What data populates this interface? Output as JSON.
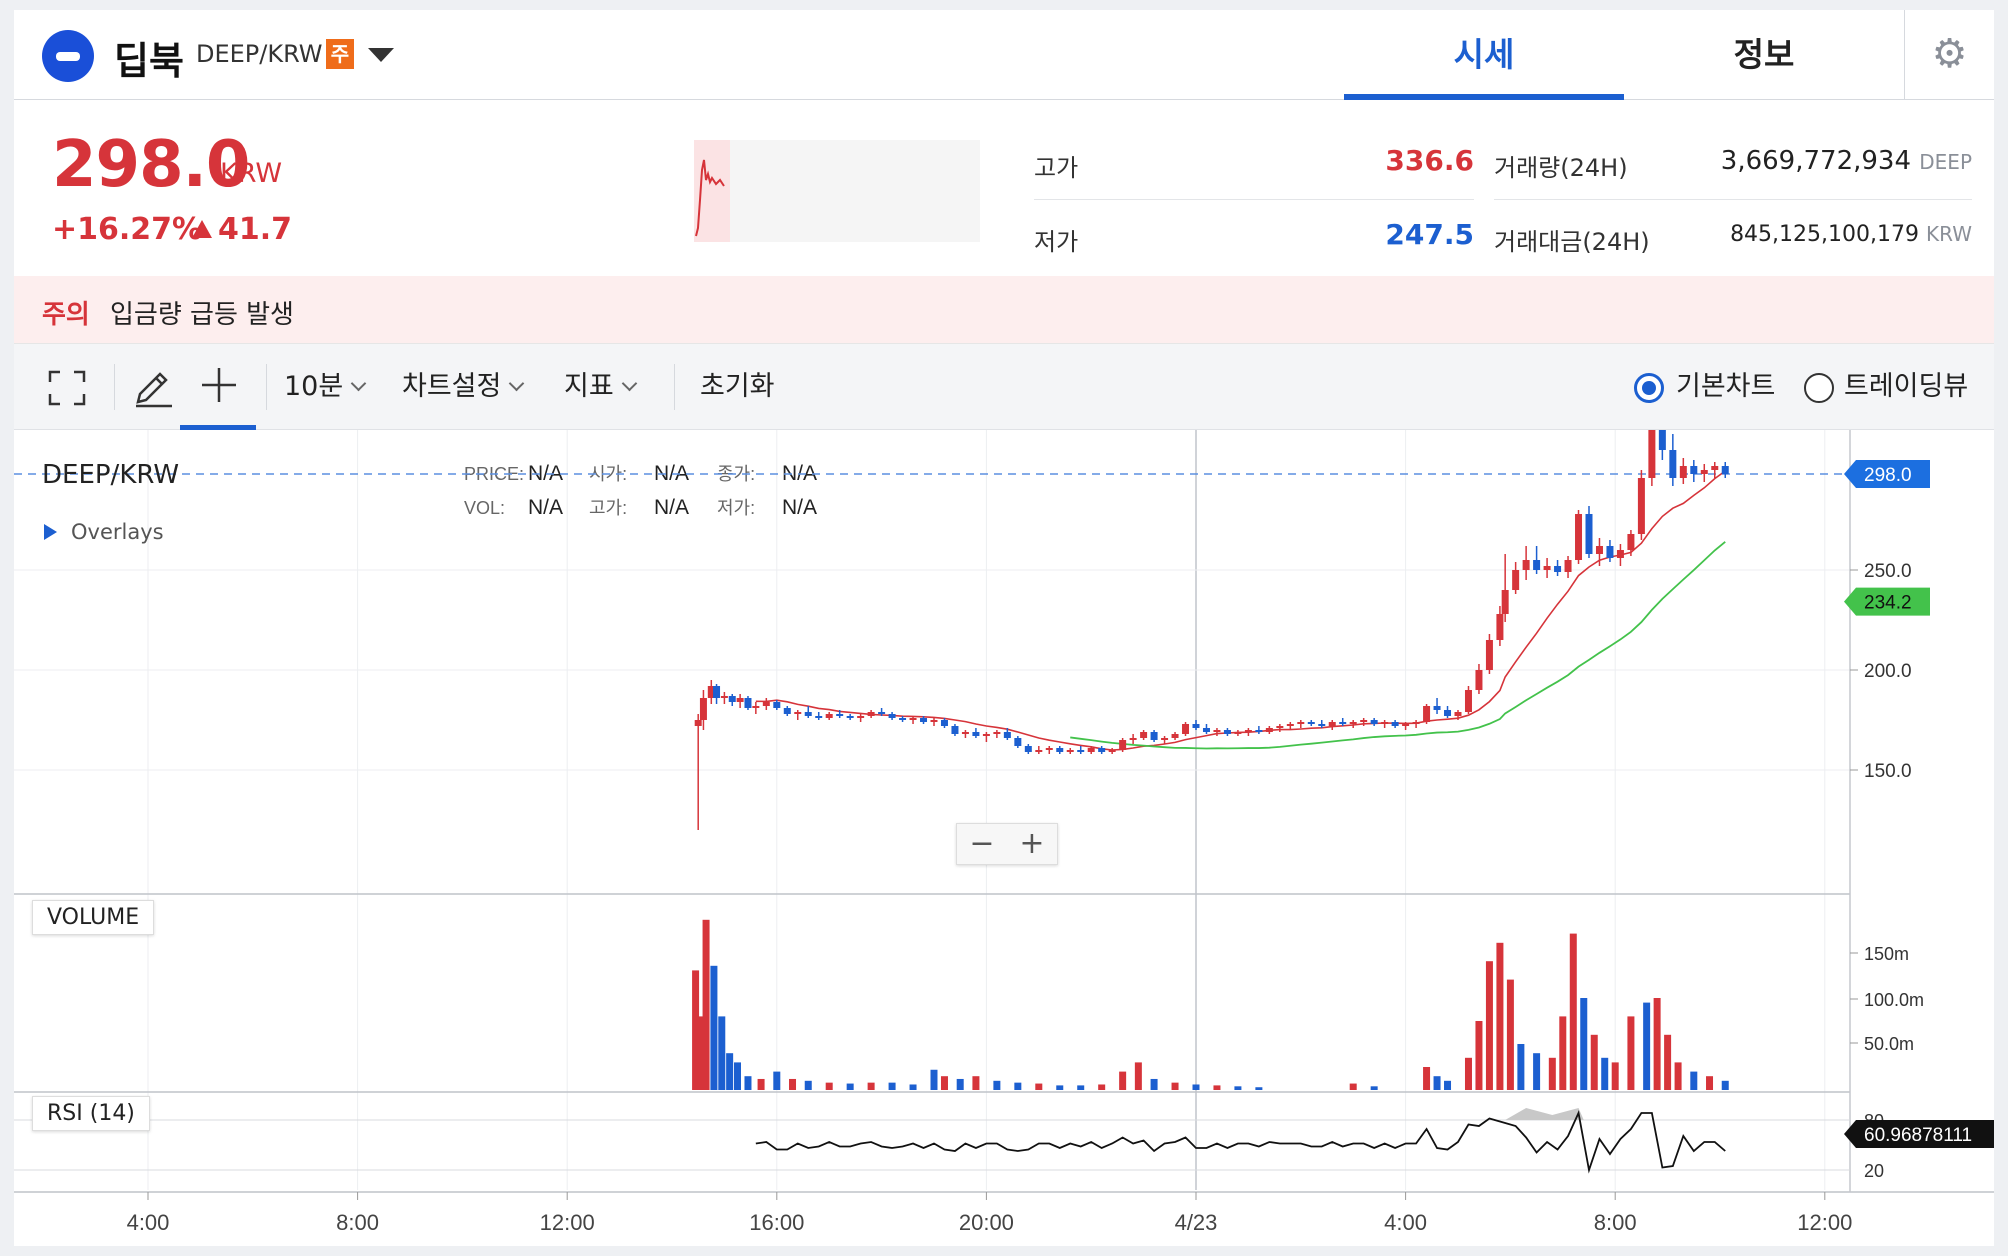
{
  "header": {
    "coin_name": "딥북",
    "pair": "DEEP/KRW",
    "caution_badge": "주",
    "tabs": [
      {
        "label": "시세",
        "active": true
      },
      {
        "label": "정보",
        "active": false
      }
    ]
  },
  "ticker": {
    "price": "298.0",
    "price_unit": "KRW",
    "change_rate": "+16.27%",
    "change_amount": "41.7",
    "stats": {
      "high_label": "고가",
      "high": "336.6",
      "low_label": "저가",
      "low": "247.5",
      "volume_label": "거래량(24H)",
      "volume": "3,669,772,934",
      "volume_unit": "DEEP",
      "value_label": "거래대금(24H)",
      "value": "845,125,100,179",
      "value_unit": "KRW"
    }
  },
  "notice": {
    "tag": "주의",
    "text": "입금량 급등 발생"
  },
  "toolbar": {
    "interval": "10분",
    "chart_settings": "차트설정",
    "indicators": "지표",
    "reset": "초기화",
    "view_basic": "기본차트",
    "view_tradingview": "트레이딩뷰"
  },
  "chart": {
    "symbol": "DEEP/KRW",
    "overlays_label": "Overlays",
    "ohlc_info": {
      "price_label": "PRICE:",
      "price": "N/A",
      "open_label": "시가:",
      "open": "N/A",
      "close_label": "종가:",
      "close": "N/A",
      "vol_label": "VOL:",
      "vol": "N/A",
      "high_label": "고가:",
      "high": "N/A",
      "low_label": "저가:",
      "low": "N/A"
    },
    "volume_label": "VOLUME",
    "rsi_label": "RSI (14)",
    "colors": {
      "up": "#d6343a",
      "down": "#1c5fd0",
      "ma_short": "#d6343a",
      "ma_long": "#43c24b"
    }
  },
  "chart_data": {
    "type": "candlestick",
    "x_ticks": [
      "4:00",
      "8:00",
      "12:00",
      "16:00",
      "20:00",
      "4/23",
      "4:00",
      "8:00",
      "12:00"
    ],
    "price_axis": {
      "ticks": [
        "150.0",
        "200.0",
        "250.0"
      ],
      "range": [
        120,
        345
      ]
    },
    "current_price_label": "298.0",
    "ma_label": "234.2",
    "volume_axis": {
      "ticks": [
        "50.0m",
        "100.0m",
        "150m"
      ],
      "range": [
        0,
        195
      ]
    },
    "rsi_axis": {
      "ticks": [
        "20",
        "80"
      ],
      "current": "60.96878111"
    },
    "candles": [
      [
        14.5,
        172,
        178,
        120,
        175
      ],
      [
        14.6,
        175,
        190,
        170,
        186
      ],
      [
        14.75,
        186,
        195,
        183,
        192
      ],
      [
        14.85,
        192,
        193,
        183,
        186
      ],
      [
        15.0,
        186,
        189,
        183,
        187
      ],
      [
        15.15,
        187,
        188,
        182,
        184
      ],
      [
        15.3,
        184,
        188,
        181,
        186
      ],
      [
        15.45,
        186,
        187,
        180,
        181
      ],
      [
        15.6,
        181,
        184,
        178,
        182
      ],
      [
        15.8,
        182,
        186,
        180,
        184
      ],
      [
        16.0,
        184,
        185,
        180,
        181
      ],
      [
        16.2,
        181,
        182,
        177,
        178
      ],
      [
        16.4,
        178,
        180,
        175,
        179
      ],
      [
        16.6,
        179,
        182,
        176,
        177
      ],
      [
        16.8,
        177,
        179,
        175,
        176
      ],
      [
        17.0,
        176,
        179,
        175,
        178
      ],
      [
        17.2,
        178,
        180,
        176,
        177
      ],
      [
        17.4,
        177,
        178,
        175,
        176
      ],
      [
        17.6,
        176,
        178,
        174,
        177
      ],
      [
        17.8,
        177,
        180,
        176,
        179
      ],
      [
        18.0,
        179,
        181,
        177,
        178
      ],
      [
        18.2,
        178,
        179,
        175,
        176
      ],
      [
        18.4,
        176,
        177,
        174,
        175
      ],
      [
        18.6,
        175,
        177,
        173,
        176
      ],
      [
        18.8,
        176,
        177,
        173,
        174
      ],
      [
        19.0,
        174,
        176,
        172,
        175
      ],
      [
        19.2,
        175,
        176,
        171,
        172
      ],
      [
        19.4,
        172,
        173,
        167,
        168
      ],
      [
        19.6,
        168,
        170,
        166,
        169
      ],
      [
        19.8,
        169,
        171,
        166,
        167
      ],
      [
        20.0,
        167,
        169,
        164,
        168
      ],
      [
        20.2,
        168,
        170,
        166,
        169
      ],
      [
        20.4,
        169,
        171,
        165,
        166
      ],
      [
        20.6,
        166,
        167,
        161,
        162
      ],
      [
        20.8,
        162,
        163,
        158,
        159
      ],
      [
        21.0,
        159,
        162,
        158,
        160
      ],
      [
        21.2,
        160,
        162,
        158,
        161
      ],
      [
        21.4,
        161,
        162,
        158,
        159
      ],
      [
        21.6,
        159,
        161,
        158,
        160
      ],
      [
        21.8,
        160,
        162,
        158,
        159
      ],
      [
        22.0,
        159,
        162,
        158,
        161
      ],
      [
        22.2,
        161,
        162,
        158,
        159
      ],
      [
        22.4,
        159,
        161,
        158,
        160
      ],
      [
        22.6,
        160,
        166,
        159,
        165
      ],
      [
        22.8,
        165,
        168,
        163,
        166
      ],
      [
        23.0,
        166,
        170,
        165,
        169
      ],
      [
        23.2,
        169,
        170,
        164,
        165
      ],
      [
        23.4,
        165,
        167,
        163,
        166
      ],
      [
        23.6,
        166,
        169,
        165,
        168
      ],
      [
        23.8,
        168,
        174,
        167,
        173
      ],
      [
        24.0,
        173,
        175,
        170,
        171
      ],
      [
        24.2,
        171,
        173,
        168,
        169
      ],
      [
        24.4,
        169,
        171,
        167,
        170
      ],
      [
        24.6,
        170,
        171,
        167,
        168
      ],
      [
        24.8,
        168,
        170,
        167,
        169
      ],
      [
        25.0,
        169,
        171,
        167,
        170
      ],
      [
        25.2,
        170,
        172,
        168,
        169
      ],
      [
        25.4,
        169,
        172,
        168,
        171
      ],
      [
        25.6,
        171,
        173,
        169,
        172
      ],
      [
        25.8,
        172,
        174,
        170,
        173
      ],
      [
        26.0,
        173,
        175,
        171,
        174
      ],
      [
        26.2,
        174,
        175,
        172,
        173
      ],
      [
        26.4,
        173,
        175,
        171,
        172
      ],
      [
        26.6,
        172,
        175,
        170,
        174
      ],
      [
        26.8,
        174,
        176,
        172,
        173
      ],
      [
        27.0,
        173,
        175,
        171,
        174
      ],
      [
        27.2,
        174,
        176,
        172,
        175
      ],
      [
        27.4,
        175,
        176,
        172,
        173
      ],
      [
        27.6,
        173,
        175,
        171,
        174
      ],
      [
        27.8,
        174,
        175,
        171,
        172
      ],
      [
        28.0,
        172,
        174,
        170,
        173
      ],
      [
        28.2,
        173,
        175,
        171,
        174
      ],
      [
        28.4,
        174,
        183,
        173,
        182
      ],
      [
        28.6,
        182,
        186,
        178,
        180
      ],
      [
        28.8,
        180,
        182,
        176,
        177
      ],
      [
        29.0,
        177,
        180,
        175,
        179
      ],
      [
        29.2,
        179,
        192,
        178,
        190
      ],
      [
        29.4,
        190,
        203,
        188,
        200
      ],
      [
        29.6,
        200,
        218,
        198,
        215
      ],
      [
        29.8,
        215,
        232,
        212,
        228
      ],
      [
        29.9,
        228,
        258,
        224,
        240
      ],
      [
        30.1,
        240,
        254,
        238,
        250
      ],
      [
        30.3,
        250,
        262,
        245,
        255
      ],
      [
        30.5,
        255,
        262,
        248,
        250
      ],
      [
        30.7,
        250,
        256,
        246,
        252
      ],
      [
        30.9,
        252,
        255,
        247,
        249
      ],
      [
        31.1,
        249,
        257,
        246,
        255
      ],
      [
        31.3,
        255,
        280,
        253,
        278
      ],
      [
        31.5,
        278,
        282,
        256,
        258
      ],
      [
        31.7,
        258,
        266,
        252,
        262
      ],
      [
        31.9,
        262,
        265,
        254,
        256
      ],
      [
        32.1,
        256,
        263,
        252,
        260
      ],
      [
        32.3,
        260,
        270,
        257,
        268
      ],
      [
        32.5,
        268,
        300,
        265,
        296
      ],
      [
        32.7,
        296,
        330,
        292,
        325
      ],
      [
        32.9,
        325,
        337,
        305,
        310
      ],
      [
        33.1,
        310,
        318,
        292,
        296
      ],
      [
        33.3,
        296,
        306,
        293,
        302
      ],
      [
        33.5,
        302,
        305,
        294,
        298
      ],
      [
        33.7,
        298,
        303,
        294,
        300
      ],
      [
        33.9,
        300,
        304,
        296,
        302
      ],
      [
        34.1,
        302,
        304,
        296,
        298
      ]
    ],
    "volume": [
      [
        14.45,
        130,
        1
      ],
      [
        14.55,
        80,
        1
      ],
      [
        14.65,
        185,
        1
      ],
      [
        14.8,
        135,
        0
      ],
      [
        14.95,
        80,
        0
      ],
      [
        15.1,
        40,
        0
      ],
      [
        15.25,
        30,
        0
      ],
      [
        15.45,
        15,
        0
      ],
      [
        15.7,
        12,
        1
      ],
      [
        16.0,
        20,
        0
      ],
      [
        16.3,
        12,
        1
      ],
      [
        16.6,
        10,
        0
      ],
      [
        17.0,
        8,
        1
      ],
      [
        17.4,
        7,
        0
      ],
      [
        17.8,
        8,
        1
      ],
      [
        18.2,
        8,
        0
      ],
      [
        18.6,
        6,
        0
      ],
      [
        19.0,
        22,
        0
      ],
      [
        19.2,
        15,
        1
      ],
      [
        19.5,
        12,
        0
      ],
      [
        19.8,
        15,
        1
      ],
      [
        20.2,
        10,
        0
      ],
      [
        20.6,
        8,
        0
      ],
      [
        21.0,
        7,
        1
      ],
      [
        21.4,
        5,
        0
      ],
      [
        21.8,
        5,
        0
      ],
      [
        22.2,
        6,
        1
      ],
      [
        22.6,
        20,
        1
      ],
      [
        22.9,
        30,
        1
      ],
      [
        23.2,
        12,
        0
      ],
      [
        23.6,
        8,
        1
      ],
      [
        24.0,
        6,
        0
      ],
      [
        24.4,
        5,
        1
      ],
      [
        24.8,
        4,
        0
      ],
      [
        25.2,
        3,
        0
      ],
      [
        27.0,
        7,
        1
      ],
      [
        27.4,
        4,
        0
      ],
      [
        28.4,
        25,
        1
      ],
      [
        28.6,
        15,
        0
      ],
      [
        28.8,
        10,
        0
      ],
      [
        29.2,
        35,
        1
      ],
      [
        29.4,
        75,
        1
      ],
      [
        29.6,
        140,
        1
      ],
      [
        29.8,
        160,
        1
      ],
      [
        30.0,
        120,
        1
      ],
      [
        30.2,
        50,
        0
      ],
      [
        30.5,
        40,
        0
      ],
      [
        30.8,
        35,
        1
      ],
      [
        31.0,
        80,
        1
      ],
      [
        31.2,
        170,
        1
      ],
      [
        31.4,
        100,
        0
      ],
      [
        31.6,
        60,
        1
      ],
      [
        31.8,
        35,
        0
      ],
      [
        32.0,
        30,
        1
      ],
      [
        32.3,
        80,
        1
      ],
      [
        32.6,
        95,
        0
      ],
      [
        32.8,
        100,
        1
      ],
      [
        33.0,
        60,
        1
      ],
      [
        33.2,
        30,
        1
      ],
      [
        33.5,
        20,
        0
      ],
      [
        33.8,
        15,
        1
      ],
      [
        34.1,
        10,
        0
      ]
    ]
  }
}
